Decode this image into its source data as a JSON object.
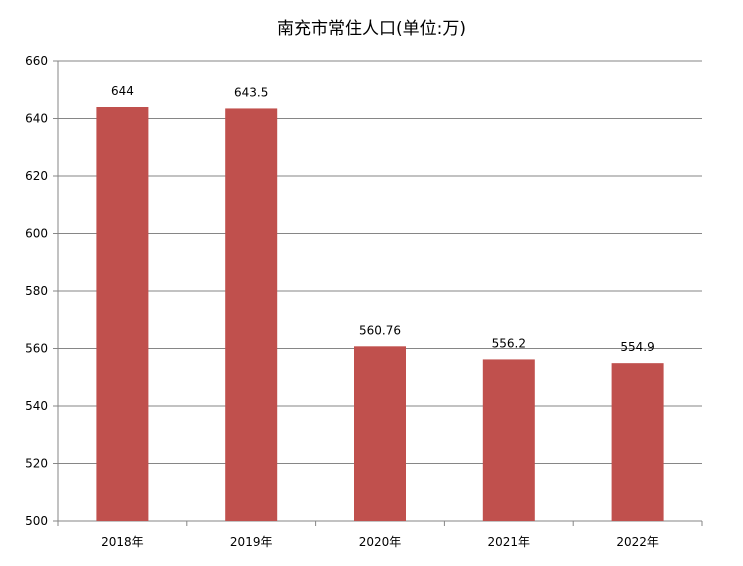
{
  "chart_data": {
    "type": "bar",
    "title": "南充市常住人口(单位:万)",
    "categories": [
      "2018年",
      "2019年",
      "2020年",
      "2021年",
      "2022年"
    ],
    "values": [
      644,
      643.5,
      560.76,
      556.2,
      554.9
    ],
    "data_labels": [
      "644",
      "643.5",
      "560.76",
      "556.2",
      "554.9"
    ],
    "ylim": [
      500,
      660
    ],
    "yticks": [
      500,
      520,
      540,
      560,
      580,
      600,
      620,
      640,
      660
    ],
    "grid": true,
    "bar_color": "#c0504d",
    "legend": "none"
  }
}
